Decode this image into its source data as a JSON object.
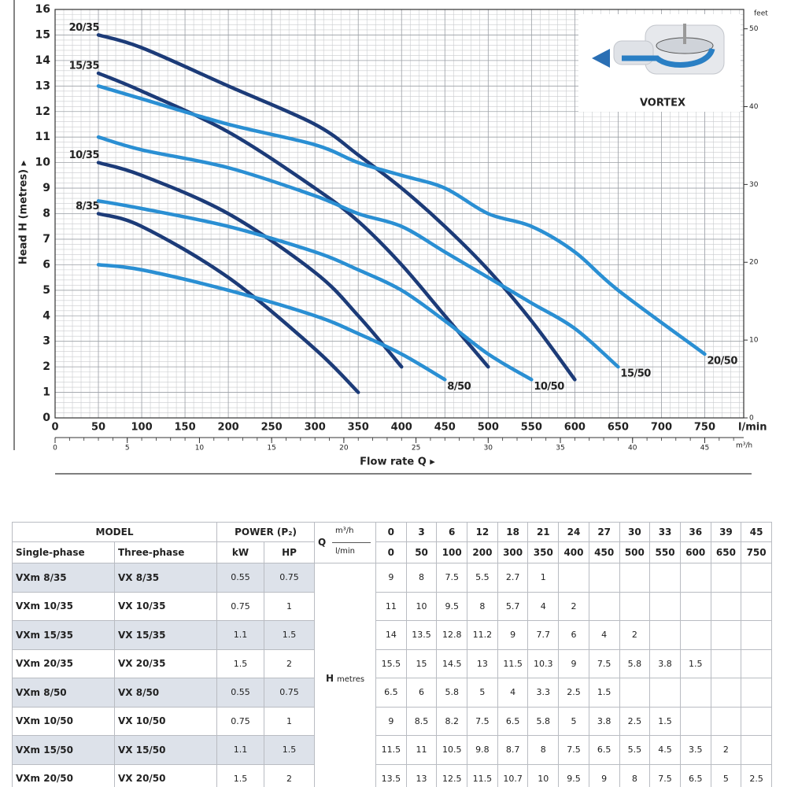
{
  "chart_data": {
    "type": "line",
    "ylabel": "Head H  (metres) ▸",
    "xlabel": "Flow rate Q ▸",
    "xunit": "l/min",
    "x2unit": "m³/h",
    "y2unit": "feet",
    "annotation": "VORTEX",
    "xlim": [
      0,
      795
    ],
    "xticks": [
      0,
      50,
      100,
      150,
      200,
      250,
      300,
      350,
      400,
      450,
      500,
      550,
      600,
      650,
      700,
      750
    ],
    "x2lim": [
      0,
      47.7
    ],
    "x2ticks": [
      0,
      5,
      10,
      15,
      20,
      25,
      30,
      35,
      40,
      45
    ],
    "ylim": [
      0,
      16
    ],
    "yticks": [
      0,
      1,
      2,
      3,
      4,
      5,
      6,
      7,
      8,
      9,
      10,
      11,
      12,
      13,
      14,
      15,
      16
    ],
    "y2lim": [
      0,
      52.49
    ],
    "y2ticks": [
      0,
      10,
      20,
      30,
      40,
      50
    ],
    "grid": true,
    "x": [
      50,
      100,
      200,
      300,
      350,
      400,
      450,
      500,
      550,
      600,
      650,
      750
    ],
    "series": [
      {
        "name": "8/35",
        "color": "#1c3b78",
        "values": [
          8,
          7.5,
          5.5,
          2.7,
          1,
          null,
          null,
          null,
          null,
          null,
          null,
          null
        ]
      },
      {
        "name": "10/35",
        "color": "#1c3b78",
        "values": [
          10,
          9.5,
          8,
          5.7,
          4,
          2,
          null,
          null,
          null,
          null,
          null,
          null
        ]
      },
      {
        "name": "15/35",
        "color": "#1c3b78",
        "values": [
          13.5,
          12.8,
          11.2,
          9,
          7.7,
          6,
          4,
          2,
          null,
          null,
          null,
          null
        ]
      },
      {
        "name": "20/35",
        "color": "#1c3b78",
        "values": [
          15,
          14.5,
          13,
          11.5,
          10.3,
          9,
          7.5,
          5.8,
          3.8,
          1.5,
          null,
          null
        ]
      },
      {
        "name": "8/50",
        "color": "#2a8fd3",
        "values": [
          6,
          5.8,
          5,
          4,
          3.3,
          2.5,
          1.5,
          null,
          null,
          null,
          null,
          null
        ]
      },
      {
        "name": "10/50",
        "color": "#2a8fd3",
        "values": [
          8.5,
          8.2,
          7.5,
          6.5,
          5.8,
          5,
          3.8,
          2.5,
          1.5,
          null,
          null,
          null
        ]
      },
      {
        "name": "15/50",
        "color": "#2a8fd3",
        "values": [
          11,
          10.5,
          9.8,
          8.7,
          8,
          7.5,
          6.5,
          5.5,
          4.5,
          3.5,
          2,
          null
        ]
      },
      {
        "name": "20/50",
        "color": "#2a8fd3",
        "values": [
          13,
          12.5,
          11.5,
          10.7,
          10,
          9.5,
          9,
          8,
          7.5,
          6.5,
          5,
          2.5
        ]
      }
    ]
  },
  "table": {
    "header": {
      "model": "MODEL",
      "power": "POWER (P₂)",
      "q": "Q",
      "q_unit_m3h": "m³/h",
      "q_unit_lmin": "l/min",
      "single": "Single-phase",
      "three": "Three-phase",
      "kw": "kW",
      "hp": "HP",
      "m3h": [
        0,
        3,
        6,
        12,
        18,
        21,
        24,
        27,
        30,
        33,
        36,
        39,
        45
      ],
      "lmin": [
        0,
        50,
        100,
        200,
        300,
        350,
        400,
        450,
        500,
        550,
        600,
        650,
        750
      ]
    },
    "h_label": "H",
    "h_unit": "metres",
    "rows": [
      {
        "single": "VXm 8/35",
        "three": "VX 8/35",
        "kw": 0.55,
        "hp": 0.75,
        "h": [
          9,
          8,
          7.5,
          5.5,
          2.7,
          1
        ]
      },
      {
        "single": "VXm 10/35",
        "three": "VX 10/35",
        "kw": 0.75,
        "hp": 1,
        "h": [
          11,
          10,
          9.5,
          8,
          5.7,
          4,
          2
        ]
      },
      {
        "single": "VXm 15/35",
        "three": "VX 15/35",
        "kw": 1.1,
        "hp": 1.5,
        "h": [
          14,
          13.5,
          12.8,
          11.2,
          9,
          7.7,
          6,
          4,
          2
        ]
      },
      {
        "single": "VXm 20/35",
        "three": "VX 20/35",
        "kw": 1.5,
        "hp": 2,
        "h": [
          15.5,
          15,
          14.5,
          13,
          11.5,
          10.3,
          9,
          7.5,
          5.8,
          3.8,
          1.5
        ]
      },
      {
        "single": "VXm 8/50",
        "three": "VX 8/50",
        "kw": 0.55,
        "hp": 0.75,
        "h": [
          6.5,
          6,
          5.8,
          5,
          4,
          3.3,
          2.5,
          1.5
        ]
      },
      {
        "single": "VXm 10/50",
        "three": "VX 10/50",
        "kw": 0.75,
        "hp": 1,
        "h": [
          9,
          8.5,
          8.2,
          7.5,
          6.5,
          5.8,
          5,
          3.8,
          2.5,
          1.5
        ]
      },
      {
        "single": "VXm 15/50",
        "three": "VX 15/50",
        "kw": 1.1,
        "hp": 1.5,
        "h": [
          11.5,
          11,
          10.5,
          9.8,
          8.7,
          8,
          7.5,
          6.5,
          5.5,
          4.5,
          3.5,
          2
        ]
      },
      {
        "single": "VXm 20/50",
        "three": "VX 20/50",
        "kw": 1.5,
        "hp": 2,
        "h": [
          13.5,
          13,
          12.5,
          11.5,
          10.7,
          10,
          9.5,
          9,
          8,
          7.5,
          6.5,
          5,
          2.5
        ]
      }
    ]
  }
}
